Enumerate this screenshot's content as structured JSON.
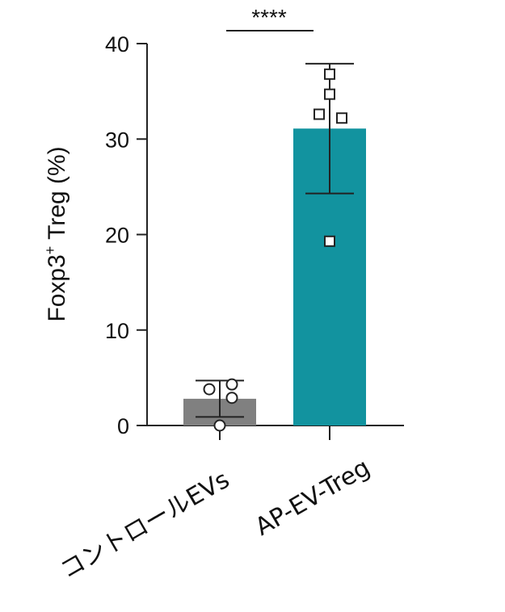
{
  "chart_data": {
    "type": "bar",
    "ylabel_main": "Foxp3",
    "ylabel_sup": "+",
    "ylabel_rest": " Treg (%)",
    "ylim": [
      0,
      40
    ],
    "yticks": [
      "0",
      "10",
      "20",
      "30",
      "40"
    ],
    "categories": [
      "コントロールEVs",
      "AP-EV-Treg"
    ],
    "values": [
      2.8,
      31.1
    ],
    "error_upper": [
      4.7,
      37.9
    ],
    "error_lower": [
      0.9,
      24.3
    ],
    "points": [
      [
        4.3,
        3.8,
        2.9,
        0.0
      ],
      [
        36.8,
        34.7,
        32.6,
        32.2,
        19.3
      ]
    ],
    "markers": [
      "circle",
      "square"
    ],
    "colors": [
      "#808080",
      "#12939f"
    ],
    "significance": "****",
    "grid": false
  }
}
